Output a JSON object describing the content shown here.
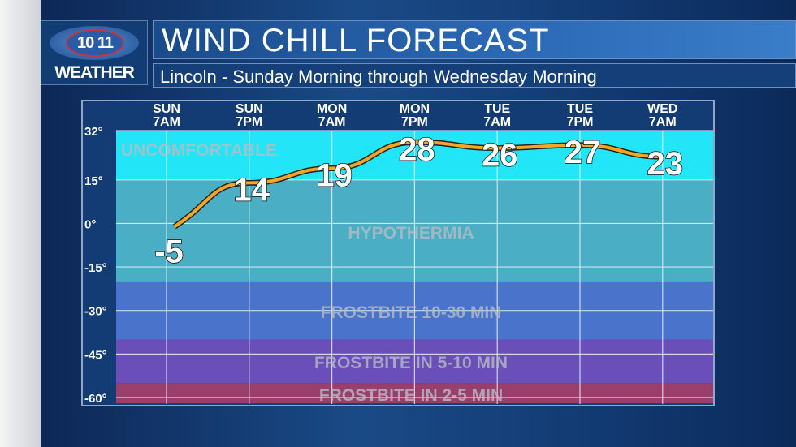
{
  "logo": {
    "number": "10 11",
    "text": "WEATHER"
  },
  "header": {
    "title": "WIND CHILL FORECAST",
    "subtitle": "Lincoln - Sunday Morning through Wednesday Morning"
  },
  "chart_data": {
    "type": "line",
    "title": "WIND CHILL FORECAST",
    "categories": [
      [
        "SUN",
        "7AM"
      ],
      [
        "SUN",
        "7PM"
      ],
      [
        "MON",
        "7AM"
      ],
      [
        "MON",
        "7PM"
      ],
      [
        "TUE",
        "7AM"
      ],
      [
        "TUE",
        "7PM"
      ],
      [
        "WED",
        "7AM"
      ]
    ],
    "values": [
      -5,
      14,
      19,
      28,
      26,
      27,
      23
    ],
    "ylim": [
      -60,
      32
    ],
    "yticks": [
      32,
      15,
      0,
      -15,
      -30,
      -45,
      -60
    ],
    "ytick_labels": [
      "32°",
      "15°",
      "0°",
      "-15°",
      "-30°",
      "-45°",
      "-60°"
    ],
    "line_color": "#f5a623",
    "grid": true,
    "bands": [
      {
        "label": "UNCOMFORTABLE",
        "from": 15,
        "to": 32,
        "color": "#22e6f7"
      },
      {
        "label": "HYPOTHERMIA",
        "from": -20,
        "to": 15,
        "color": "#4aafc4"
      },
      {
        "label": "FROSTBITE 10-30 MIN",
        "from": -40,
        "to": -20,
        "color": "#4a74cc"
      },
      {
        "label": "FROSTBITE IN 5-10 MIN",
        "from": -55,
        "to": -40,
        "color": "#6a4fb8"
      },
      {
        "label": "FROSTBITE IN 2-5 MIN",
        "from": -62,
        "to": -55,
        "color": "#9a3f6c"
      }
    ]
  }
}
